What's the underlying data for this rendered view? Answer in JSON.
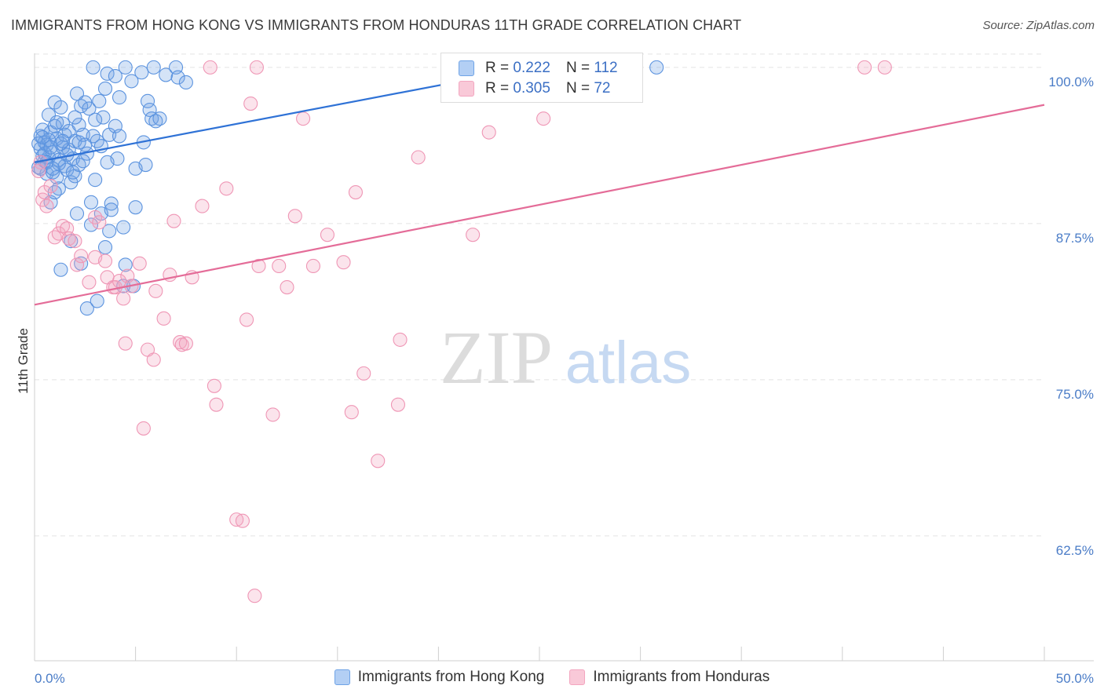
{
  "title": "IMMIGRANTS FROM HONG KONG VS IMMIGRANTS FROM HONDURAS 11TH GRADE CORRELATION CHART",
  "source": "Source: ZipAtlas.com",
  "watermark": {
    "zip": "ZIP",
    "atlas": "atlas"
  },
  "legend": [
    {
      "r_label": "R =",
      "r_value": "0.222",
      "n_label": "N =",
      "n_value": "112"
    },
    {
      "r_label": "R =",
      "r_value": "0.305",
      "n_label": "N =",
      "n_value": "72"
    }
  ],
  "chart_data": {
    "type": "scatter",
    "title": "IMMIGRANTS FROM HONG KONG VS IMMIGRANTS FROM HONDURAS 11TH GRADE CORRELATION CHART",
    "xlabel": "",
    "ylabel": "11th Grade",
    "xlim": [
      0,
      50
    ],
    "ylim": [
      52.5,
      101.5
    ],
    "x_tick_labels": [
      "0.0%",
      "50.0%"
    ],
    "y_ticks": [
      62.5,
      75.0,
      87.5,
      100.0
    ],
    "y_tick_labels": [
      "62.5%",
      "75.0%",
      "87.5%",
      "100.0%"
    ],
    "grid": true,
    "legend_position": "top-center",
    "series": [
      {
        "name": "Immigrants from Hong Kong",
        "color": "#6fa3e6",
        "line_color": "#2f72d6",
        "trend": {
          "x": [
            0,
            26
          ],
          "y": [
            92.4,
            100.4
          ]
        },
        "points": [
          [
            0.2,
            92.0
          ],
          [
            0.3,
            93.5
          ],
          [
            0.3,
            94.5
          ],
          [
            0.4,
            95.0
          ],
          [
            0.5,
            92.5
          ],
          [
            0.5,
            94.0
          ],
          [
            0.6,
            91.5
          ],
          [
            0.6,
            93.8
          ],
          [
            0.7,
            96.2
          ],
          [
            0.7,
            92.8
          ],
          [
            0.8,
            94.8
          ],
          [
            0.8,
            89.2
          ],
          [
            0.9,
            93.2
          ],
          [
            1.0,
            97.2
          ],
          [
            1.0,
            95.3
          ],
          [
            1.1,
            91.2
          ],
          [
            1.1,
            94.3
          ],
          [
            1.2,
            92.6
          ],
          [
            1.2,
            90.3
          ],
          [
            1.3,
            96.8
          ],
          [
            1.3,
            83.8
          ],
          [
            1.4,
            93.6
          ],
          [
            1.4,
            95.5
          ],
          [
            1.5,
            94.6
          ],
          [
            1.5,
            92.1
          ],
          [
            1.6,
            91.8
          ],
          [
            1.7,
            93.4
          ],
          [
            1.7,
            94.9
          ],
          [
            1.8,
            90.8
          ],
          [
            1.8,
            86.1
          ],
          [
            1.9,
            92.7
          ],
          [
            2.0,
            94.1
          ],
          [
            2.0,
            91.3
          ],
          [
            2.1,
            97.9
          ],
          [
            2.1,
            88.3
          ],
          [
            2.2,
            95.4
          ],
          [
            2.2,
            92.2
          ],
          [
            2.3,
            84.3
          ],
          [
            2.3,
            96.9
          ],
          [
            2.4,
            94.6
          ],
          [
            2.5,
            97.2
          ],
          [
            2.6,
            80.7
          ],
          [
            2.6,
            93.1
          ],
          [
            2.7,
            96.7
          ],
          [
            2.8,
            89.2
          ],
          [
            2.8,
            87.4
          ],
          [
            2.9,
            100.0
          ],
          [
            3.0,
            91.0
          ],
          [
            3.1,
            94.1
          ],
          [
            3.1,
            81.3
          ],
          [
            3.2,
            97.3
          ],
          [
            3.3,
            88.3
          ],
          [
            3.3,
            93.7
          ],
          [
            3.4,
            96.0
          ],
          [
            3.5,
            85.6
          ],
          [
            3.5,
            98.3
          ],
          [
            3.6,
            99.5
          ],
          [
            3.7,
            94.6
          ],
          [
            3.7,
            86.9
          ],
          [
            3.8,
            89.1
          ],
          [
            3.8,
            88.6
          ],
          [
            4.0,
            99.3
          ],
          [
            4.0,
            95.3
          ],
          [
            4.1,
            92.7
          ],
          [
            4.2,
            97.6
          ],
          [
            4.2,
            94.5
          ],
          [
            4.4,
            87.2
          ],
          [
            4.4,
            82.5
          ],
          [
            4.5,
            84.2
          ],
          [
            4.5,
            100.0
          ],
          [
            4.8,
            98.9
          ],
          [
            4.9,
            82.5
          ],
          [
            5.0,
            88.8
          ],
          [
            5.0,
            91.9
          ],
          [
            5.3,
            99.6
          ],
          [
            5.4,
            94.0
          ],
          [
            5.5,
            92.2
          ],
          [
            5.6,
            97.3
          ],
          [
            5.7,
            96.6
          ],
          [
            5.8,
            95.9
          ],
          [
            5.9,
            100.0
          ],
          [
            6.0,
            95.7
          ],
          [
            6.2,
            95.9
          ],
          [
            6.5,
            99.4
          ],
          [
            7.0,
            100.0
          ],
          [
            7.1,
            99.2
          ],
          [
            7.5,
            98.8
          ],
          [
            0.2,
            93.9
          ],
          [
            0.4,
            92.9
          ],
          [
            0.9,
            91.6
          ],
          [
            1.6,
            93.0
          ],
          [
            2.4,
            92.5
          ],
          [
            1.0,
            90.0
          ],
          [
            0.5,
            93.1
          ],
          [
            0.7,
            94.2
          ],
          [
            1.3,
            93.9
          ],
          [
            2.0,
            96.0
          ],
          [
            2.9,
            94.5
          ],
          [
            3.0,
            95.8
          ],
          [
            0.3,
            91.9
          ],
          [
            0.6,
            92.4
          ],
          [
            1.1,
            95.6
          ],
          [
            1.9,
            91.6
          ],
          [
            2.5,
            93.8
          ],
          [
            3.6,
            92.4
          ],
          [
            1.4,
            94.1
          ],
          [
            0.4,
            94.4
          ],
          [
            0.8,
            93.6
          ],
          [
            2.2,
            94.0
          ],
          [
            30.8,
            100.0
          ],
          [
            1.2,
            92.3
          ],
          [
            0.9,
            91.9
          ]
        ]
      },
      {
        "name": "Immigrants from Honduras",
        "color": "#f3a6c0",
        "line_color": "#e46c98",
        "trend": {
          "x": [
            0,
            50
          ],
          "y": [
            81.0,
            97.0
          ]
        },
        "points": [
          [
            0.3,
            92.4
          ],
          [
            0.4,
            89.4
          ],
          [
            0.5,
            90.0
          ],
          [
            0.6,
            88.9
          ],
          [
            1.0,
            86.4
          ],
          [
            1.2,
            86.7
          ],
          [
            1.4,
            87.3
          ],
          [
            1.6,
            87.1
          ],
          [
            1.7,
            86.3
          ],
          [
            2.0,
            86.1
          ],
          [
            2.1,
            84.2
          ],
          [
            2.3,
            84.9
          ],
          [
            2.7,
            82.8
          ],
          [
            3.0,
            84.8
          ],
          [
            3.0,
            88.0
          ],
          [
            3.2,
            87.6
          ],
          [
            3.5,
            84.5
          ],
          [
            3.6,
            83.2
          ],
          [
            3.9,
            82.4
          ],
          [
            4.0,
            82.4
          ],
          [
            4.2,
            82.9
          ],
          [
            4.4,
            81.5
          ],
          [
            4.5,
            77.9
          ],
          [
            4.6,
            83.3
          ],
          [
            4.8,
            82.5
          ],
          [
            5.2,
            84.3
          ],
          [
            5.4,
            71.1
          ],
          [
            5.6,
            77.4
          ],
          [
            5.9,
            76.6
          ],
          [
            6.0,
            82.1
          ],
          [
            6.4,
            79.9
          ],
          [
            6.7,
            83.4
          ],
          [
            6.9,
            87.7
          ],
          [
            7.2,
            78.0
          ],
          [
            7.3,
            77.8
          ],
          [
            7.5,
            77.9
          ],
          [
            7.8,
            83.2
          ],
          [
            8.3,
            88.9
          ],
          [
            8.7,
            100.0
          ],
          [
            8.9,
            74.5
          ],
          [
            9.0,
            73.0
          ],
          [
            9.5,
            90.3
          ],
          [
            10.0,
            63.8
          ],
          [
            10.3,
            63.7
          ],
          [
            10.5,
            79.8
          ],
          [
            10.7,
            97.1
          ],
          [
            10.9,
            57.7
          ],
          [
            11.0,
            100.0
          ],
          [
            11.1,
            84.1
          ],
          [
            11.8,
            72.2
          ],
          [
            12.1,
            84.1
          ],
          [
            12.5,
            82.4
          ],
          [
            12.9,
            88.1
          ],
          [
            13.3,
            95.9
          ],
          [
            13.8,
            84.1
          ],
          [
            14.5,
            86.6
          ],
          [
            15.3,
            84.4
          ],
          [
            15.7,
            72.4
          ],
          [
            15.9,
            90.0
          ],
          [
            16.3,
            75.5
          ],
          [
            17.0,
            68.5
          ],
          [
            18.0,
            73.0
          ],
          [
            18.1,
            78.2
          ],
          [
            19.0,
            92.8
          ],
          [
            21.7,
            86.6
          ],
          [
            22.5,
            94.8
          ],
          [
            25.2,
            95.9
          ],
          [
            27.1,
            100.0
          ],
          [
            41.1,
            100.0
          ],
          [
            42.1,
            100.0
          ],
          [
            0.2,
            91.7
          ],
          [
            0.8,
            90.5
          ]
        ]
      }
    ]
  }
}
